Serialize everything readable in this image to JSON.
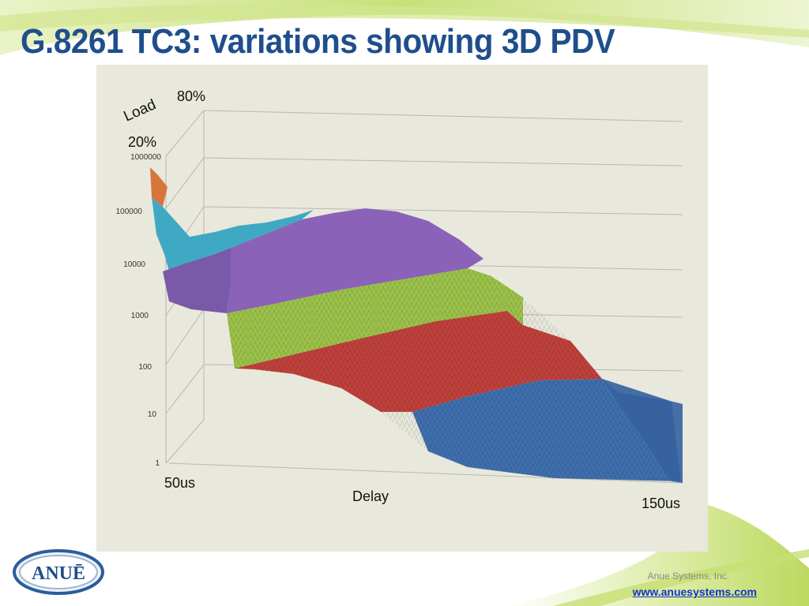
{
  "slide": {
    "title": "G.8261 TC3: variations showing 3D PDV",
    "company": "Anue Systems, Inc.",
    "url": "www.anuesystems.com",
    "logo_text": "ANUĒ"
  },
  "colors": {
    "title": "#1f4e8c",
    "panel_bg": "#e9e8dc",
    "band_orange": "#d6763a",
    "band_cyan": "#3fa9c4",
    "band_purple": "#8a62b8",
    "band_green": "#9cc24a",
    "band_red": "#c0413c",
    "band_blue": "#3f6fae"
  },
  "chart_data": {
    "type": "surface-3d",
    "title": "",
    "load_axis_label": "Load",
    "load_ticks": [
      "80%",
      "20%"
    ],
    "z_axis_scale": "log",
    "z_ticks": [
      "1000000",
      "100000",
      "10000",
      "1000",
      "100",
      "10",
      "1"
    ],
    "x_axis_label": "Delay",
    "x_ticks": [
      "50us",
      "150us"
    ],
    "color_bands": [
      "orange",
      "cyan",
      "purple",
      "green",
      "red",
      "blue"
    ],
    "grid": true
  }
}
